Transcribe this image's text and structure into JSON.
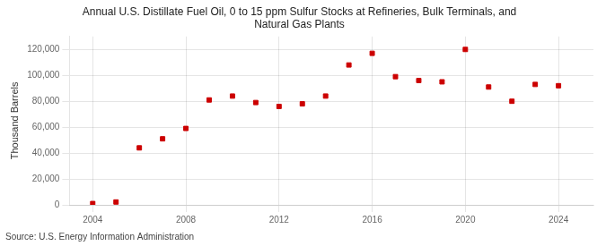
{
  "chart_data": {
    "type": "scatter",
    "title": "Annual U.S. Distillate Fuel Oil, 0 to 15 ppm Sulfur Stocks at Refineries, Bulk Terminals, and\nNatural Gas Plants",
    "ylabel": "Thousand Barrels",
    "source": "Source: U.S. Energy Information Administration",
    "x": [
      2004,
      2005,
      2006,
      2007,
      2008,
      2009,
      2010,
      2011,
      2012,
      2013,
      2014,
      2015,
      2016,
      2017,
      2018,
      2019,
      2020,
      2021,
      2022,
      2023,
      2024
    ],
    "values": [
      1000,
      2200,
      44000,
      51000,
      59000,
      81000,
      84000,
      79000,
      76000,
      78000,
      84000,
      108000,
      117000,
      99000,
      96000,
      95000,
      120000,
      91000,
      80000,
      93000,
      92000
    ],
    "color": "#cc0000",
    "marker": "square",
    "xlim": [
      2003,
      2025.5
    ],
    "xticks": [
      2004,
      2008,
      2012,
      2016,
      2020,
      2024
    ],
    "ylim": [
      0,
      130000
    ],
    "yticks": [
      0,
      {
        "value": 20000,
        "label": "20,000"
      },
      {
        "value": 40000,
        "label": "40,000"
      },
      {
        "value": 60000,
        "label": "60,000"
      },
      {
        "value": 80000,
        "label": "80,000"
      },
      {
        "value": 100000,
        "label": "100,000"
      },
      {
        "value": 120000,
        "label": "120,000"
      }
    ],
    "grid": true
  }
}
